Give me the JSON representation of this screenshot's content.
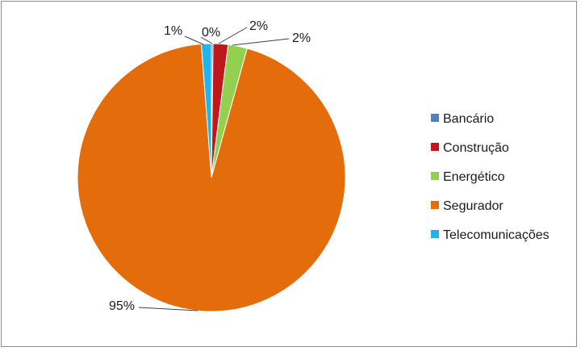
{
  "chart_data": {
    "type": "pie",
    "title": "",
    "slices": [
      {
        "name": "Bancário",
        "value": 0.2,
        "label": "0%",
        "color": "#4f81bd"
      },
      {
        "name": "Construção",
        "value": 1.8,
        "label": "2%",
        "color": "#c0171c"
      },
      {
        "name": "Energético",
        "value": 2.3,
        "label": "2%",
        "color": "#92d050"
      },
      {
        "name": "Segurador",
        "value": 94.5,
        "label": "95%",
        "color": "#e46c0a"
      },
      {
        "name": "Telecomunicações",
        "value": 1.2,
        "label": "1%",
        "color": "#1fb5ea"
      }
    ],
    "legend_position": "right"
  }
}
